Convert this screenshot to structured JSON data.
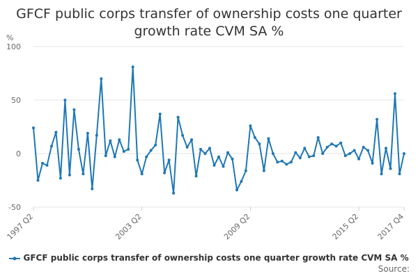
{
  "chart_data": {
    "type": "line",
    "title": "GFCF public corps transfer of ownership costs one quarter growth rate CVM SA %",
    "ylabel": "%",
    "xlabel": "",
    "ylim": [
      -50,
      100
    ],
    "yticks": [
      "-50",
      "0",
      "50",
      "100"
    ],
    "xticks": [
      "1997 Q2",
      "2003 Q2",
      "2009 Q2",
      "2015 Q2",
      "2017 Q4"
    ],
    "grid": true,
    "legend_position": "bottom",
    "color": "#1f77b4",
    "x_start": "1997 Q2",
    "x_end": "2017 Q4",
    "series": [
      {
        "name": "GFCF public corps transfer of ownership costs one quarter growth rate CVM SA %",
        "values": [
          24,
          -25,
          -9,
          -11,
          7,
          20,
          -23,
          50,
          -20,
          41,
          4,
          -19,
          19,
          -33,
          17,
          70,
          -2,
          12,
          -3,
          13,
          2,
          4,
          81,
          -6,
          -19,
          -3,
          3,
          8,
          37,
          -18,
          -6,
          -37,
          34,
          17,
          6,
          13,
          -21,
          4,
          0,
          5,
          -11,
          -3,
          -12,
          1,
          -5,
          -34,
          -26,
          -16,
          26,
          15,
          9,
          -16,
          14,
          0,
          -8,
          -7,
          -10,
          -8,
          1,
          -4,
          5,
          -3,
          -2,
          15,
          0,
          6,
          9,
          7,
          10,
          -2,
          0,
          3,
          -5,
          6,
          3,
          -9,
          32,
          -19,
          5,
          -14,
          56,
          -19,
          0
        ]
      }
    ]
  },
  "legend": {
    "label": "GFCF public corps transfer of ownership costs one quarter growth rate CVM SA %"
  },
  "source": {
    "label": "Source:"
  }
}
